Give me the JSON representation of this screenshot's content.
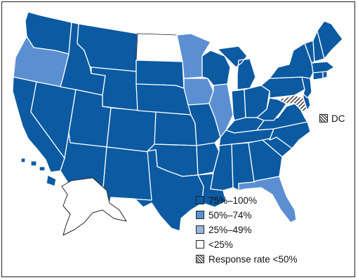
{
  "colors": {
    "p75_100": "#0b5aa2",
    "p50_74": "#5b8fd2",
    "p25_49": "#9ab6e3",
    "lt25": "#ffffff",
    "low_response": "hatched",
    "state_border": "#ffffff"
  },
  "legend": {
    "items": [
      {
        "key": "p75_100",
        "label": "75%–100%"
      },
      {
        "key": "p50_74",
        "label": "50%–74%"
      },
      {
        "key": "p25_49",
        "label": "25%–49%"
      },
      {
        "key": "lt25",
        "label": "<25%"
      },
      {
        "key": "low_response",
        "label": "Response rate <50%"
      }
    ]
  },
  "dc": {
    "label": "DC",
    "category": "low_response"
  },
  "states": {
    "WA": "p75_100",
    "OR": "p50_74",
    "CA": "p75_100",
    "NV": "p75_100",
    "ID": "p75_100",
    "MT": "p75_100",
    "WY": "p75_100",
    "UT": "p75_100",
    "AZ": "p75_100",
    "CO": "p75_100",
    "NM": "p75_100",
    "ND": "lt25",
    "SD": "p75_100",
    "NE": "p75_100",
    "KS": "p75_100",
    "OK": "p75_100",
    "TX": "p75_100",
    "MN": "p50_74",
    "IA": "p50_74",
    "MO": "p75_100",
    "AR": "p75_100",
    "LA": "p75_100",
    "WI": "p75_100",
    "IL": "p50_74",
    "MI": "p75_100",
    "IN": "p75_100",
    "OH": "p75_100",
    "KY": "p75_100",
    "TN": "p75_100",
    "MS": "p75_100",
    "AL": "p75_100",
    "GA": "p75_100",
    "FL": "p50_74",
    "SC": "p75_100",
    "NC": "p75_100",
    "VA": "p75_100",
    "WV": "p75_100",
    "MD": "low_response",
    "DE": "p75_100",
    "PA": "p75_100",
    "NJ": "p75_100",
    "NY": "p75_100",
    "CT": "p75_100",
    "RI": "p75_100",
    "MA": "p75_100",
    "VT": "p75_100",
    "NH": "p75_100",
    "ME": "p75_100",
    "AK": "lt25",
    "HI": "p75_100"
  }
}
